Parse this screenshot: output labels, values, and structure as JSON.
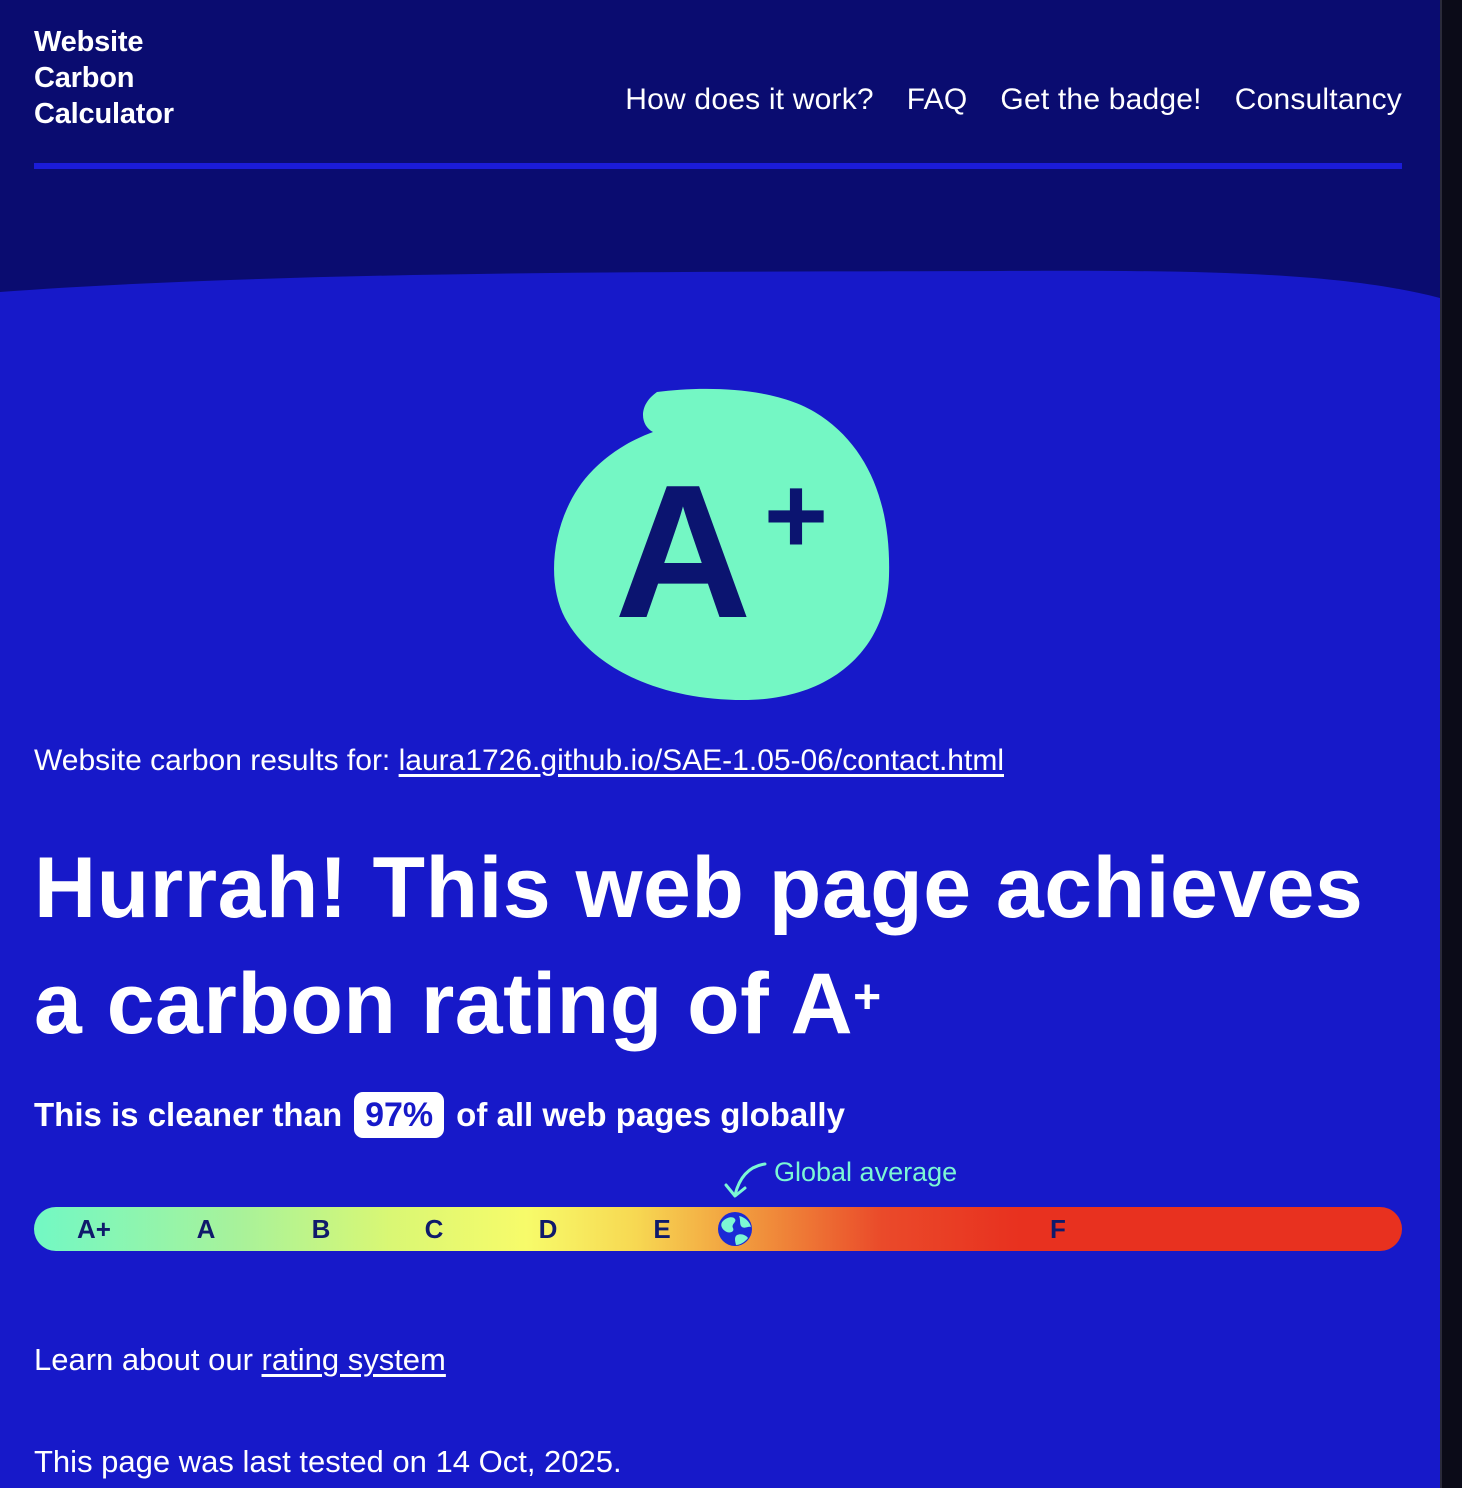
{
  "site": {
    "logo_text": "Website\nCarbon\nCalculator"
  },
  "nav": {
    "items": [
      {
        "label": "How does it work?"
      },
      {
        "label": "FAQ"
      },
      {
        "label": "Get the badge!"
      },
      {
        "label": "Consultancy"
      }
    ]
  },
  "grade": {
    "letter": "A",
    "modifier": "+"
  },
  "results": {
    "prefix": "Website carbon results for:",
    "url": "laura1726.github.io/SAE-1.05-06/contact.html"
  },
  "headline": {
    "text": "Hurrah! This web page achieves a carbon rating of A",
    "modifier": "+"
  },
  "cleaner": {
    "before": "This is cleaner than",
    "percent": "97%",
    "after": "of all web pages globally"
  },
  "scale": {
    "global_average_label": "Global average",
    "grades": [
      "A+",
      "A",
      "B",
      "C",
      "D",
      "E",
      "F"
    ],
    "global_average_icon": "globe-icon"
  },
  "learn": {
    "prefix": "Learn about our",
    "link": "rating system"
  },
  "tested": {
    "text": "This page was last tested on 14 Oct, 2025."
  },
  "colors": {
    "background": "#1719c9",
    "header": "#0a0c70",
    "accent": "#74f7c4",
    "grade_text": "#0b1470"
  }
}
